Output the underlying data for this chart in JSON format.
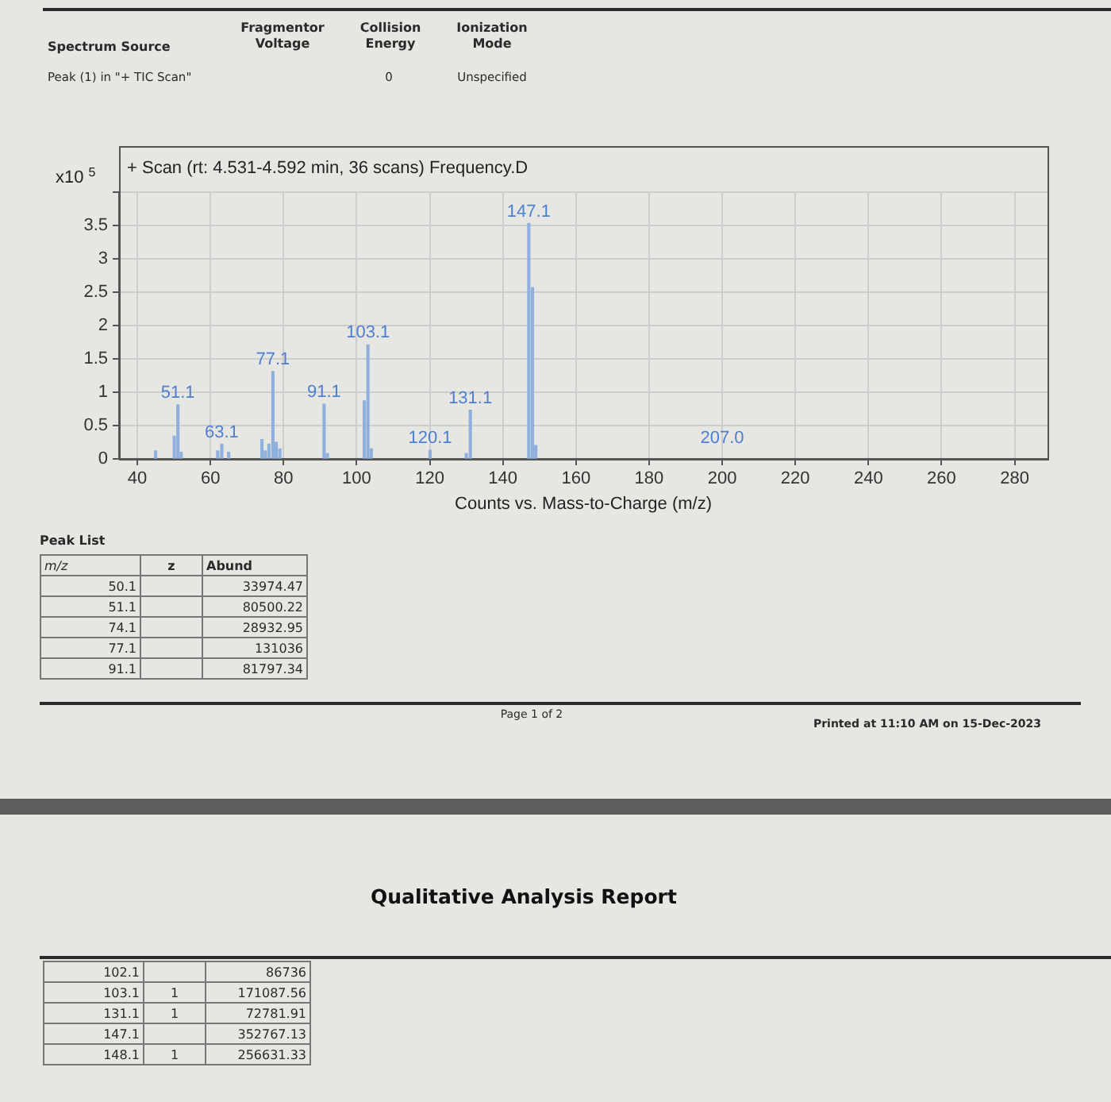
{
  "chart_data": {
    "type": "bar",
    "title": "+ Scan (rt: 4.531-4.592 min, 36 scans) Frequency.D",
    "xlabel": "Counts vs. Mass-to-Charge (m/z)",
    "ylabel": "x10$^{5}$",
    "x": [
      45,
      50.1,
      51.1,
      52,
      62,
      63.1,
      65,
      74.1,
      75,
      76,
      77.1,
      78,
      79,
      91.1,
      92,
      102.1,
      103.1,
      104,
      120.1,
      130,
      131.1,
      147.1,
      148.1,
      149
    ],
    "values": [
      0.12,
      0.34,
      0.81,
      0.1,
      0.12,
      0.22,
      0.1,
      0.29,
      0.12,
      0.22,
      1.31,
      0.25,
      0.15,
      0.82,
      0.08,
      0.87,
      1.71,
      0.15,
      0.13,
      0.08,
      0.73,
      3.53,
      2.57,
      0.2
    ],
    "color": "#8fb0dc",
    "xlim": [
      35,
      289
    ],
    "ylim": [
      0,
      4
    ],
    "xticks": [
      40,
      60,
      80,
      100,
      120,
      140,
      160,
      180,
      200,
      220,
      240,
      260,
      280
    ],
    "yticks": [
      0,
      0.5,
      1,
      1.5,
      2,
      2.5,
      3,
      3.5,
      {
        "value": 4,
        "label": null
      }
    ],
    "grid": true,
    "annotations": [
      "Spectrum Source",
      "Fragmentor Voltage",
      "Collision Energy",
      "Ionization Mode",
      "Peak (1) in \"+ TIC Scan\"",
      "0",
      "Unspecified",
      {
        "text": "51.1",
        "x": 51.1,
        "y": 0.81
      },
      {
        "text": "63.1",
        "x": 63.1,
        "y": 0.22
      },
      {
        "text": "77.1",
        "x": 77.1,
        "y": 1.31
      },
      {
        "text": "91.1",
        "x": 91.1,
        "y": 0.82
      },
      {
        "text": "103.1",
        "x": 103.1,
        "y": 1.71
      },
      {
        "text": "120.1",
        "x": 120.1,
        "y": 0.13
      },
      {
        "text": "131.1",
        "x": 131.1,
        "y": 0.73
      },
      {
        "text": "147.1",
        "x": 147.1,
        "y": 3.53
      },
      "Peak List",
      "m/z",
      "z",
      "Abund",
      "50.1",
      "33974.47",
      "51.1",
      "80500.22",
      "74.1",
      "28932.95",
      "77.1",
      "131036",
      "91.1",
      "81797.34",
      "Page 1 of 2",
      "Printed at 11:10 AM on 15-Dec-2023",
      "Qualitative Analysis Report",
      "102.1",
      "86736",
      "103.1",
      "1",
      "171087.56",
      "131.1",
      "1",
      "72781.91",
      "147.1",
      "352767.13",
      "148.1",
      "1",
      "256631.33",
      "207.0"
    ]
  }
}
